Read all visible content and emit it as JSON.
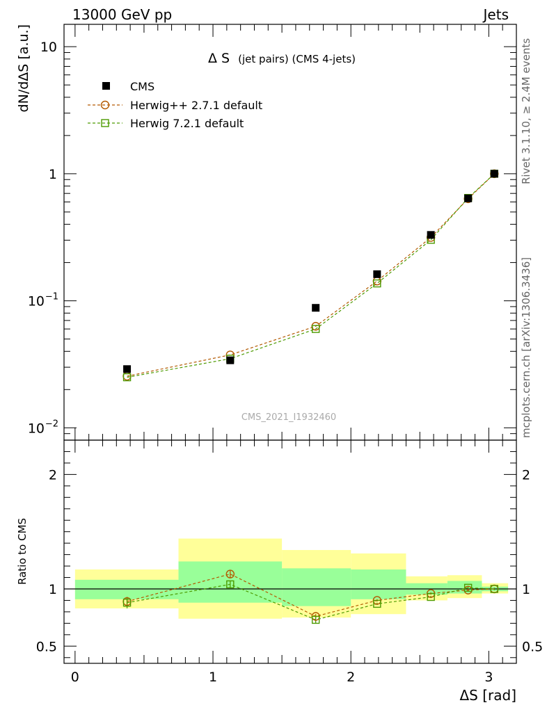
{
  "header": {
    "left": "13000 GeV pp",
    "right": "Jets"
  },
  "side_labels": {
    "rivet": "Rivet 3.1.10, ≥ 2.4M events",
    "mcplots": "mcplots.cern.ch [arXiv:1306.3436]"
  },
  "plot_title": {
    "main": "Δ S",
    "sub": "(jet pairs) (CMS 4-jets)"
  },
  "watermark": "CMS_2021_I1932460",
  "colors": {
    "cms": "#000000",
    "herwigpp": "#b35900",
    "herwig7": "#4c9a00",
    "band_inner": "#99ff99",
    "band_outer": "#ffff99"
  },
  "chart_data": [
    {
      "type": "scatter",
      "ylabel": "dN/dΔS [a.u.]",
      "yscale": "log",
      "ylim": [
        0.008,
        15
      ],
      "xlim": [
        -0.08,
        3.2
      ],
      "yticks": [
        {
          "v": 10,
          "label": "10"
        },
        {
          "v": 1,
          "label": "1"
        },
        {
          "v": 0.1,
          "label": "10",
          "exp": "−1"
        },
        {
          "v": 0.01,
          "label": "10",
          "exp": "−2"
        }
      ],
      "legend": [
        "CMS",
        "Herwig++ 2.7.1 default",
        "Herwig 7.2.1 default"
      ],
      "x": [
        0.377,
        1.125,
        1.745,
        2.19,
        2.58,
        2.85,
        3.04
      ],
      "series": [
        {
          "name": "CMS",
          "values": [
            0.029,
            0.034,
            0.088,
            0.162,
            0.33,
            0.64,
            1.0
          ]
        },
        {
          "name": "Herwig++ 2.7.1 default",
          "values": [
            0.0255,
            0.0375,
            0.063,
            0.143,
            0.315,
            0.635,
            1.0
          ]
        },
        {
          "name": "Herwig 7.2.1 default",
          "values": [
            0.025,
            0.035,
            0.06,
            0.137,
            0.302,
            0.645,
            1.0
          ]
        }
      ]
    },
    {
      "type": "line",
      "ylabel": "Ratio to CMS",
      "xlabel": "ΔS [rad]",
      "ylim": [
        0.35,
        2.3
      ],
      "xlim": [
        -0.08,
        3.2
      ],
      "yticks": [
        {
          "v": 0.5,
          "label": "0.5"
        },
        {
          "v": 1,
          "label": "1"
        },
        {
          "v": 2,
          "label": "2"
        }
      ],
      "xticks": [
        {
          "v": 0,
          "label": "0"
        },
        {
          "v": 1,
          "label": "1"
        },
        {
          "v": 2,
          "label": "2"
        },
        {
          "v": 3,
          "label": "3"
        }
      ],
      "bins": [
        {
          "lo": 0.0,
          "hi": 0.75,
          "inner": [
            0.91,
            1.08
          ],
          "outer": [
            0.83,
            1.17
          ]
        },
        {
          "lo": 0.75,
          "hi": 1.5,
          "inner": [
            0.88,
            1.24
          ],
          "outer": [
            0.74,
            1.44
          ]
        },
        {
          "lo": 1.5,
          "hi": 2.0,
          "inner": [
            0.85,
            1.18
          ],
          "outer": [
            0.75,
            1.34
          ]
        },
        {
          "lo": 2.0,
          "hi": 2.4,
          "inner": [
            0.91,
            1.17
          ],
          "outer": [
            0.78,
            1.31
          ]
        },
        {
          "lo": 2.4,
          "hi": 2.7,
          "inner": [
            0.95,
            1.05
          ],
          "outer": [
            0.9,
            1.11
          ]
        },
        {
          "lo": 2.7,
          "hi": 2.95,
          "inner": [
            0.96,
            1.07
          ],
          "outer": [
            0.92,
            1.12
          ]
        },
        {
          "lo": 2.95,
          "hi": 3.14,
          "inner": [
            0.98,
            1.02
          ],
          "outer": [
            0.96,
            1.05
          ]
        }
      ],
      "x": [
        0.377,
        1.125,
        1.745,
        2.19,
        2.58,
        2.85,
        3.04
      ],
      "series": [
        {
          "name": "Herwig++ 2.7.1 default",
          "values": [
            0.89,
            1.13,
            0.76,
            0.9,
            0.96,
            0.99,
            1.0
          ],
          "err": [
            0.04,
            0.03,
            0.02,
            0.01,
            0.01,
            0.01,
            0.01
          ]
        },
        {
          "name": "Herwig 7.2.1 default",
          "values": [
            0.88,
            1.04,
            0.73,
            0.87,
            0.93,
            1.01,
            1.0
          ],
          "err": [
            0.05,
            0.03,
            0.03,
            0.01,
            0.01,
            0.01,
            0.01
          ]
        }
      ]
    }
  ]
}
